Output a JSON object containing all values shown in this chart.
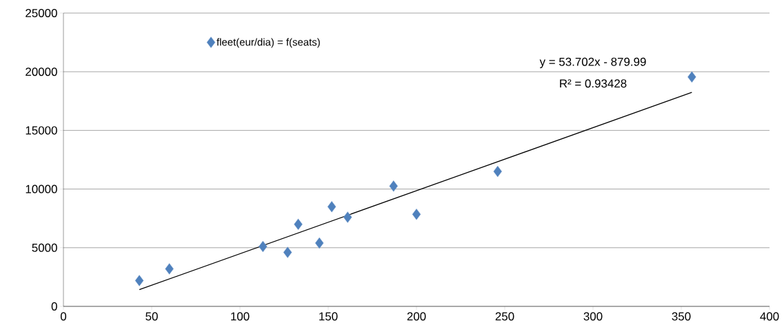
{
  "chart_data": {
    "type": "scatter",
    "series": [
      {
        "name": "fleet(eur/dia) = f(seats)",
        "color": "#4f81bd",
        "marker": "diamond",
        "x": [
          43,
          60,
          113,
          127,
          133,
          145,
          152,
          161,
          187,
          200,
          246,
          356
        ],
        "values": [
          2200,
          3200,
          5100,
          4600,
          7000,
          5400,
          8500,
          7600,
          10250,
          7850,
          11500,
          19550
        ]
      },
      {
        "type": "line",
        "color": "#000000",
        "x": [
          43,
          356
        ],
        "values": [
          1429,
          18238
        ]
      }
    ],
    "annotations": [
      "y = 53.702x - 879.99",
      "R² = 0.93428"
    ],
    "xlim": [
      0,
      400
    ],
    "xticks": [
      0,
      50,
      100,
      150,
      200,
      250,
      300,
      350,
      400
    ],
    "ylim": [
      0,
      25000
    ],
    "yticks": [
      0,
      5000,
      10000,
      15000,
      20000,
      25000
    ],
    "grid": "y",
    "legend": "top left"
  }
}
